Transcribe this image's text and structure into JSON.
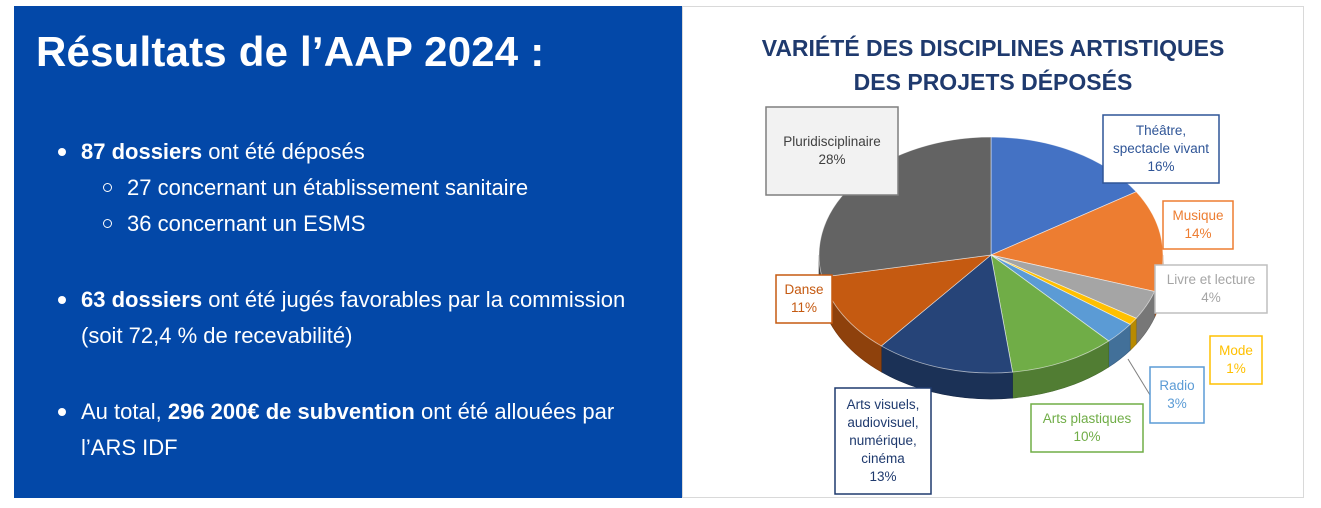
{
  "slide": {
    "title": "Résultats de l’AAP 2024 :",
    "b1_bold": "87 dossiers",
    "b1_rest": " ont été déposés",
    "b1_sub1": "27 concernant un établissement sanitaire",
    "b1_sub2": "36 concernant un ESMS",
    "b2_bold": "63 dossiers",
    "b2_rest": " ont été jugés favorables par la commission (soit 72,4 % de recevabilité)",
    "b3_pre": "Au total, ",
    "b3_bold": "296 200€ de subvention",
    "b3_rest": " ont été allouées par l’ARS IDF"
  },
  "chart_data": {
    "type": "pie",
    "title_line1": "VARIÉTÉ DES DISCIPLINES ARTISTIQUES",
    "title_line2": "DES PROJETS DÉPOSÉS",
    "slices": [
      {
        "label": [
          "Théâtre,",
          "spectacle vivant"
        ],
        "value": 16,
        "pct": "16%",
        "color": "#4472c4"
      },
      {
        "label": [
          "Musique"
        ],
        "value": 14,
        "pct": "14%",
        "color": "#ed7d31"
      },
      {
        "label": [
          "Livre et lecture"
        ],
        "value": 4,
        "pct": "4%",
        "color": "#a5a5a5"
      },
      {
        "label": [
          "Mode"
        ],
        "value": 1,
        "pct": "1%",
        "color": "#ffc000"
      },
      {
        "label": [
          "Radio"
        ],
        "value": 3,
        "pct": "3%",
        "color": "#5b9bd5"
      },
      {
        "label": [
          "Arts plastiques"
        ],
        "value": 10,
        "pct": "10%",
        "color": "#70ad47"
      },
      {
        "label": [
          "Arts visuels,",
          "audiovisuel,",
          "numérique,",
          "cinéma"
        ],
        "value": 13,
        "pct": "13%",
        "color": "#264478"
      },
      {
        "label": [
          "Danse"
        ],
        "value": 11,
        "pct": "11%",
        "color": "#c55a11"
      },
      {
        "label": [
          "Pluridisciplinaire"
        ],
        "value": 28,
        "pct": "28%",
        "color": "#636363"
      }
    ]
  }
}
